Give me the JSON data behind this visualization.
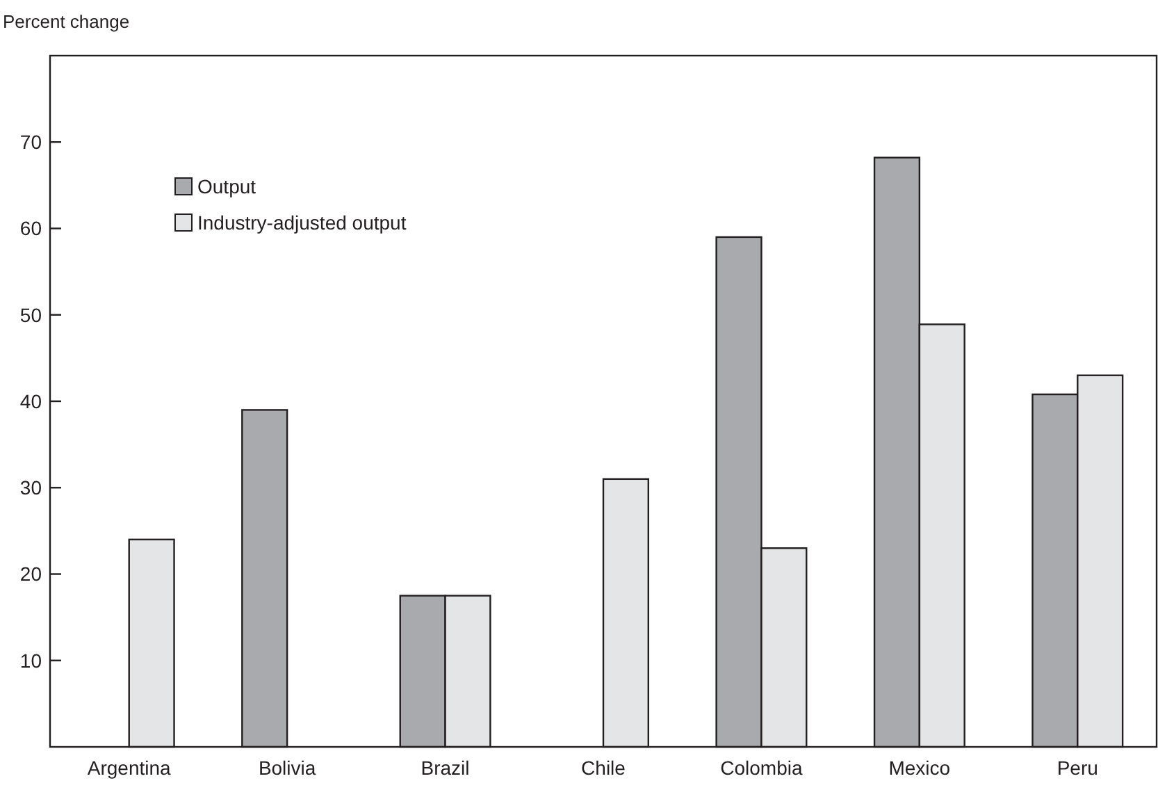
{
  "chart_data": {
    "type": "bar",
    "ylabel": "Percent change",
    "categories": [
      "Argentina",
      "Bolivia",
      "Brazil",
      "Chile",
      "Colombia",
      "Mexico",
      "Peru"
    ],
    "series": [
      {
        "name": "Output",
        "color": "#a9aaad",
        "values": [
          null,
          39,
          17.5,
          null,
          59,
          68.2,
          40.8
        ]
      },
      {
        "name": "Industry-adjusted output",
        "color": "#e4e5e7",
        "values": [
          24,
          null,
          17.5,
          31,
          23,
          48.9,
          43
        ]
      }
    ],
    "ylim": [
      0,
      80
    ],
    "yticks": [
      10,
      20,
      30,
      40,
      50,
      60,
      70
    ],
    "grid": false,
    "legend": "top left"
  }
}
